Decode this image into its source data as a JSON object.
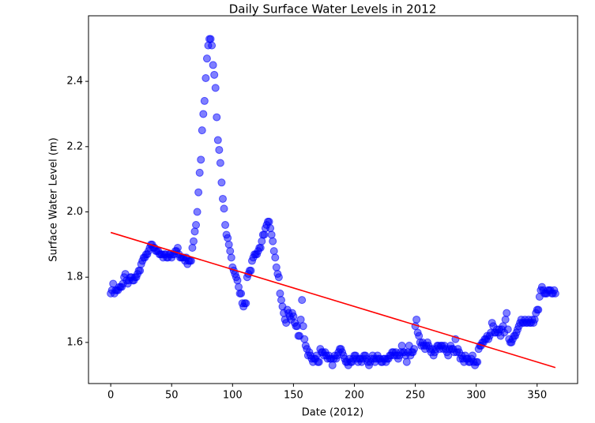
{
  "chart_data": {
    "type": "scatter",
    "title": "Daily Surface Water Levels in 2012",
    "x_label": "Date (2012)",
    "y_label": "Surface Water Level (m)",
    "xlim": [
      -18.25,
      383.25
    ],
    "ylim": [
      1.474,
      2.601
    ],
    "xticks": [
      0,
      50,
      100,
      150,
      200,
      250,
      300,
      350
    ],
    "yticks": [
      1.6,
      1.8,
      {
        "value": 2,
        "label": "2.0"
      },
      2.2,
      2.4
    ],
    "series": [
      {
        "type": "scatter",
        "color": "#0000ff",
        "x": [
          0,
          1,
          2,
          3,
          4,
          5,
          6,
          7,
          8,
          9,
          10,
          11,
          12,
          13,
          14,
          15,
          16,
          17,
          18,
          19,
          20,
          21,
          22,
          23,
          24,
          25,
          26,
          27,
          28,
          29,
          30,
          31,
          32,
          33,
          34,
          35,
          36,
          37,
          38,
          39,
          40,
          41,
          42,
          43,
          44,
          45,
          46,
          47,
          48,
          49,
          50,
          51,
          52,
          53,
          54,
          55,
          56,
          57,
          58,
          59,
          60,
          61,
          62,
          63,
          64,
          65,
          66,
          67,
          68,
          69,
          70,
          71,
          72,
          73,
          74,
          75,
          76,
          77,
          78,
          79,
          80,
          81,
          82,
          83,
          84,
          85,
          86,
          87,
          88,
          89,
          90,
          91,
          92,
          93,
          94,
          95,
          96,
          97,
          98,
          99,
          100,
          101,
          102,
          103,
          104,
          105,
          106,
          107,
          108,
          109,
          110,
          111,
          112,
          113,
          114,
          115,
          116,
          117,
          118,
          119,
          120,
          121,
          122,
          123,
          124,
          125,
          126,
          127,
          128,
          129,
          130,
          131,
          132,
          133,
          134,
          135,
          136,
          137,
          138,
          139,
          140,
          141,
          142,
          143,
          144,
          145,
          146,
          147,
          148,
          149,
          150,
          151,
          152,
          153,
          154,
          155,
          156,
          157,
          158,
          159,
          160,
          161,
          162,
          163,
          164,
          165,
          166,
          167,
          168,
          169,
          170,
          171,
          172,
          173,
          174,
          175,
          176,
          177,
          178,
          179,
          180,
          181,
          182,
          183,
          184,
          185,
          186,
          187,
          188,
          189,
          190,
          191,
          192,
          193,
          194,
          195,
          196,
          197,
          198,
          199,
          200,
          201,
          202,
          203,
          204,
          205,
          206,
          207,
          208,
          209,
          210,
          211,
          212,
          213,
          214,
          215,
          216,
          217,
          218,
          219,
          220,
          221,
          222,
          223,
          224,
          225,
          226,
          227,
          228,
          229,
          230,
          231,
          232,
          233,
          234,
          235,
          236,
          237,
          238,
          239,
          240,
          241,
          242,
          243,
          244,
          245,
          246,
          247,
          248,
          249,
          250,
          251,
          252,
          253,
          254,
          255,
          256,
          257,
          258,
          259,
          260,
          261,
          262,
          263,
          264,
          265,
          266,
          267,
          268,
          269,
          270,
          271,
          272,
          273,
          274,
          275,
          276,
          277,
          278,
          279,
          280,
          281,
          282,
          283,
          284,
          285,
          286,
          287,
          288,
          289,
          290,
          291,
          292,
          293,
          294,
          295,
          296,
          297,
          298,
          299,
          300,
          301,
          302,
          303,
          304,
          305,
          306,
          307,
          308,
          309,
          310,
          311,
          312,
          313,
          314,
          315,
          316,
          317,
          318,
          319,
          320,
          321,
          322,
          323,
          324,
          325,
          326,
          327,
          328,
          329,
          330,
          331,
          332,
          333,
          334,
          335,
          336,
          337,
          338,
          339,
          340,
          341,
          342,
          343,
          344,
          345,
          346,
          347,
          348,
          349,
          350,
          351,
          352,
          353,
          354,
          355,
          356,
          357,
          358,
          359,
          360,
          361,
          362,
          363,
          364,
          365
        ],
        "values": [
          1.75,
          1.76,
          1.78,
          1.75,
          1.76,
          1.76,
          1.76,
          1.77,
          1.77,
          1.77,
          1.78,
          1.8,
          1.81,
          1.79,
          1.78,
          1.79,
          1.8,
          1.8,
          1.79,
          1.79,
          1.8,
          1.8,
          1.81,
          1.82,
          1.82,
          1.84,
          1.85,
          1.86,
          1.86,
          1.87,
          1.87,
          1.88,
          1.89,
          1.9,
          1.9,
          1.89,
          1.89,
          1.88,
          1.88,
          1.88,
          1.87,
          1.87,
          1.87,
          1.86,
          1.87,
          1.87,
          1.86,
          1.86,
          1.87,
          1.87,
          1.86,
          1.87,
          1.87,
          1.88,
          1.88,
          1.89,
          1.87,
          1.86,
          1.86,
          1.86,
          1.86,
          1.85,
          1.86,
          1.84,
          1.85,
          1.85,
          1.85,
          1.89,
          1.91,
          1.94,
          1.96,
          2.0,
          2.06,
          2.12,
          2.16,
          2.25,
          2.3,
          2.34,
          2.41,
          2.47,
          2.51,
          2.53,
          2.53,
          2.51,
          2.45,
          2.42,
          2.38,
          2.29,
          2.22,
          2.19,
          2.15,
          2.09,
          2.04,
          2.01,
          1.96,
          1.93,
          1.92,
          1.9,
          1.88,
          1.86,
          1.83,
          1.82,
          1.81,
          1.8,
          1.79,
          1.77,
          1.75,
          1.75,
          1.72,
          1.71,
          1.72,
          1.72,
          1.8,
          1.81,
          1.82,
          1.82,
          1.85,
          1.86,
          1.87,
          1.87,
          1.87,
          1.88,
          1.89,
          1.89,
          1.91,
          1.93,
          1.93,
          1.95,
          1.96,
          1.97,
          1.97,
          1.95,
          1.93,
          1.91,
          1.88,
          1.86,
          1.83,
          1.81,
          1.8,
          1.75,
          1.73,
          1.71,
          1.69,
          1.67,
          1.66,
          1.7,
          1.69,
          1.68,
          1.67,
          1.69,
          1.68,
          1.66,
          1.65,
          1.65,
          1.62,
          1.62,
          1.67,
          1.73,
          1.65,
          1.61,
          1.59,
          1.58,
          1.56,
          1.57,
          1.56,
          1.55,
          1.54,
          1.55,
          1.55,
          1.56,
          1.54,
          1.54,
          1.58,
          1.57,
          1.57,
          1.56,
          1.57,
          1.56,
          1.55,
          1.56,
          1.55,
          1.55,
          1.53,
          1.55,
          1.56,
          1.55,
          1.56,
          1.57,
          1.58,
          1.58,
          1.57,
          1.56,
          1.55,
          1.54,
          1.54,
          1.53,
          1.55,
          1.54,
          1.54,
          1.55,
          1.56,
          1.56,
          1.55,
          1.54,
          1.55,
          1.55,
          1.54,
          1.55,
          1.56,
          1.56,
          1.55,
          1.54,
          1.53,
          1.54,
          1.55,
          1.56,
          1.55,
          1.54,
          1.55,
          1.56,
          1.55,
          1.55,
          1.54,
          1.54,
          1.55,
          1.55,
          1.54,
          1.55,
          1.55,
          1.56,
          1.56,
          1.57,
          1.57,
          1.56,
          1.57,
          1.56,
          1.55,
          1.56,
          1.57,
          1.59,
          1.57,
          1.57,
          1.56,
          1.54,
          1.57,
          1.59,
          1.56,
          1.57,
          1.57,
          1.58,
          1.65,
          1.67,
          1.63,
          1.62,
          1.6,
          1.59,
          1.6,
          1.59,
          1.58,
          1.59,
          1.6,
          1.59,
          1.58,
          1.57,
          1.58,
          1.56,
          1.57,
          1.58,
          1.59,
          1.59,
          1.58,
          1.59,
          1.59,
          1.58,
          1.59,
          1.58,
          1.57,
          1.56,
          1.58,
          1.59,
          1.58,
          1.58,
          1.57,
          1.61,
          1.57,
          1.58,
          1.57,
          1.55,
          1.56,
          1.55,
          1.54,
          1.56,
          1.55,
          1.55,
          1.54,
          1.54,
          1.55,
          1.56,
          1.54,
          1.53,
          1.54,
          1.54,
          1.58,
          1.59,
          1.59,
          1.6,
          1.6,
          1.61,
          1.61,
          1.62,
          1.61,
          1.62,
          1.63,
          1.66,
          1.65,
          1.63,
          1.63,
          1.64,
          1.63,
          1.64,
          1.62,
          1.64,
          1.65,
          1.63,
          1.67,
          1.69,
          1.64,
          1.61,
          1.6,
          1.6,
          1.61,
          1.62,
          1.62,
          1.63,
          1.64,
          1.65,
          1.66,
          1.67,
          1.66,
          1.66,
          1.67,
          1.66,
          1.66,
          1.67,
          1.66,
          1.66,
          1.67,
          1.66,
          1.67,
          1.69,
          1.7,
          1.7,
          1.74,
          1.76,
          1.77,
          1.76,
          1.75,
          1.75,
          1.75,
          1.76,
          1.76,
          1.76,
          1.75,
          1.75,
          1.76,
          1.75
        ]
      },
      {
        "type": "line",
        "color": "#ff0000",
        "x": [
          0,
          365
        ],
        "values": [
          1.937,
          1.523
        ]
      }
    ]
  }
}
